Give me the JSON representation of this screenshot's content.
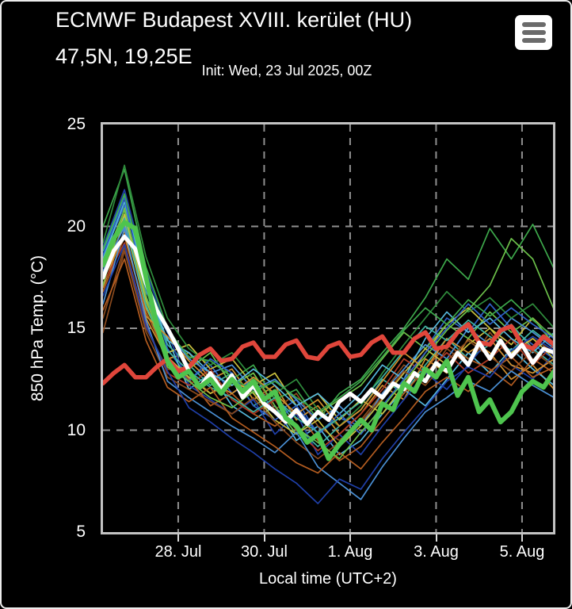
{
  "header": {
    "title_line1": "ECMWF Budapest XVIII. kerület (HU)",
    "title_line2": "47,5N, 19,25E",
    "subtitle": "Init: Wed, 23 Jul 2025, 00Z"
  },
  "menu": {
    "icon": "hamburger-icon"
  },
  "colors": {
    "background": "#000000",
    "card_border": "#ececec",
    "plot_border": "#c3c3c3",
    "grid": "#8f8f8f",
    "text": "#ffffff",
    "ensemble_mean": "#ffffff",
    "control_run": "#4ec44e",
    "climate_mean": "#e0463b"
  },
  "chart_data": {
    "type": "line",
    "title": "ECMWF Budapest XVIII. kerület (HU) 47,5N, 19,25E",
    "subtitle": "Init: Wed, 23 Jul 2025, 00Z",
    "xlabel": "Local time (UTC+2)",
    "ylabel": "850 hPa Temp. (°C)",
    "ylim": [
      5,
      25
    ],
    "x_range": [
      0,
      10.47
    ],
    "x_unit_days_from": "26 Jul 06:00 local",
    "grid": "dashed",
    "legend": "none",
    "y_ticks": [
      {
        "label": "25",
        "value": 25
      },
      {
        "label": "20",
        "value": 20
      },
      {
        "label": "15",
        "value": 15
      },
      {
        "label": "10",
        "value": 10
      },
      {
        "label": "5",
        "value": 5
      }
    ],
    "y_gridlines": [
      20,
      15,
      10
    ],
    "x_ticks": [
      {
        "label": "28. Jul",
        "t": 1.75
      },
      {
        "label": "30. Jul",
        "t": 3.75
      },
      {
        "label": "1. Aug",
        "t": 5.75
      },
      {
        "label": "3. Aug",
        "t": 7.75
      },
      {
        "label": "5. Aug",
        "t": 9.75
      }
    ],
    "main_series": [
      {
        "name": "climate-mean",
        "color": "#e0463b",
        "width": 5.5,
        "step_days": 0.25,
        "values": [
          12.3,
          12.8,
          13.2,
          12.6,
          12.6,
          13.1,
          13.5,
          12.9,
          13.1,
          13.7,
          14.0,
          13.4,
          13.5,
          14.1,
          14.3,
          13.6,
          13.6,
          14.2,
          14.4,
          13.6,
          13.5,
          14.1,
          14.3,
          13.6,
          13.7,
          14.3,
          14.6,
          13.8,
          13.8,
          14.5,
          14.8,
          14.0,
          14.1,
          14.8,
          15.2,
          14.3,
          14.2,
          14.9,
          15.1,
          14.2,
          14.0,
          14.6,
          14.2
        ]
      },
      {
        "name": "ensemble-mean",
        "color": "#ffffff",
        "width": 5,
        "step_days": 0.25,
        "values": [
          17.5,
          18.8,
          19.5,
          18.9,
          17.2,
          15.9,
          15.0,
          14.0,
          12.9,
          12.1,
          12.8,
          12.0,
          12.7,
          11.6,
          12.2,
          11.3,
          10.9,
          10.4,
          11.0,
          10.3,
          10.9,
          10.5,
          11.4,
          11.8,
          11.4,
          12.0,
          11.6,
          12.3,
          12.0,
          12.8,
          12.4,
          13.3,
          12.9,
          13.8,
          13.2,
          14.3,
          13.5,
          14.4,
          13.6,
          14.2,
          13.3,
          14.0,
          13.8
        ]
      },
      {
        "name": "control-run",
        "color": "#4ec44e",
        "width": 6,
        "step_days": 0.25,
        "values": [
          18.1,
          19.4,
          20.2,
          19.9,
          17.5,
          15.2,
          13.4,
          12.6,
          12.9,
          12.1,
          12.5,
          11.8,
          12.5,
          11.9,
          12.4,
          11.5,
          11.9,
          10.6,
          10.2,
          9.4,
          9.8,
          8.6,
          9.3,
          9.9,
          10.5,
          10.0,
          11.3,
          11.0,
          12.3,
          11.9,
          13.0,
          12.6,
          13.4,
          11.7,
          12.6,
          10.9,
          11.5,
          10.4,
          10.9,
          11.9,
          12.4,
          12.1,
          12.9
        ]
      }
    ],
    "ensemble_members": {
      "step_days": 0.5,
      "series": [
        {
          "color": "#2f62c8",
          "values": [
            18.5,
            21.0,
            17.5,
            14.0,
            12.5,
            13.2,
            11.8,
            12.5,
            10.8,
            11.5,
            9.8,
            10.6,
            10.2,
            11.5,
            12.8,
            14.0,
            15.5,
            14.8,
            16.2,
            15.0,
            14.2,
            13.5
          ]
        },
        {
          "color": "#d2912e",
          "values": [
            17.0,
            19.8,
            15.5,
            13.5,
            13.8,
            12.5,
            13.0,
            11.5,
            12.2,
            10.5,
            11.2,
            9.8,
            10.8,
            12.2,
            11.5,
            13.5,
            12.8,
            14.5,
            13.8,
            12.5,
            13.2,
            12.0
          ]
        },
        {
          "color": "#3da84b",
          "values": [
            20.0,
            22.8,
            18.0,
            15.0,
            13.5,
            14.0,
            12.5,
            13.2,
            11.5,
            12.0,
            10.5,
            11.8,
            12.5,
            13.8,
            15.0,
            16.5,
            18.4,
            17.4,
            19.9,
            18.4,
            20.1,
            17.9
          ]
        },
        {
          "color": "#56b8dc",
          "values": [
            18.0,
            20.5,
            16.5,
            14.5,
            12.0,
            12.8,
            11.2,
            10.5,
            11.2,
            9.5,
            10.2,
            8.8,
            9.5,
            10.8,
            12.0,
            11.2,
            12.5,
            13.8,
            12.8,
            14.0,
            13.0,
            12.2
          ]
        },
        {
          "color": "#8a4a1e",
          "values": [
            15.5,
            19.0,
            15.0,
            13.0,
            12.8,
            11.8,
            12.2,
            12.8,
            11.0,
            11.8,
            10.2,
            9.5,
            10.5,
            11.8,
            13.2,
            12.5,
            14.0,
            13.2,
            14.8,
            13.5,
            14.5,
            13.8
          ]
        },
        {
          "color": "#3fb3a0",
          "values": [
            18.8,
            21.5,
            17.0,
            14.2,
            13.2,
            12.2,
            12.8,
            11.2,
            11.8,
            10.2,
            9.2,
            10.2,
            11.0,
            12.5,
            11.8,
            13.2,
            14.5,
            13.5,
            14.2,
            15.2,
            14.0,
            13.2
          ]
        },
        {
          "color": "#c9bf3e",
          "values": [
            17.5,
            20.2,
            16.0,
            13.8,
            14.2,
            13.0,
            13.5,
            12.2,
            12.8,
            11.2,
            11.8,
            10.5,
            11.5,
            10.8,
            12.2,
            13.8,
            15.2,
            16.0,
            15.0,
            14.2,
            15.5,
            14.5
          ]
        },
        {
          "color": "#1f3fa8",
          "values": [
            19.0,
            21.8,
            17.8,
            14.8,
            12.2,
            11.5,
            10.8,
            11.5,
            9.8,
            10.8,
            8.8,
            9.8,
            8.8,
            10.2,
            11.5,
            12.8,
            12.0,
            13.2,
            14.5,
            13.2,
            12.5,
            13.8
          ]
        },
        {
          "color": "#6cc04a",
          "values": [
            18.2,
            20.8,
            16.2,
            13.2,
            13.0,
            13.8,
            12.2,
            12.8,
            11.2,
            9.8,
            10.8,
            11.5,
            12.2,
            13.5,
            14.8,
            14.0,
            15.2,
            14.5,
            15.8,
            14.8,
            15.5,
            14.2
          ]
        },
        {
          "color": "#b35c20",
          "values": [
            16.8,
            19.5,
            15.8,
            13.5,
            12.5,
            11.2,
            11.8,
            10.8,
            10.2,
            11.0,
            9.5,
            8.5,
            9.2,
            10.5,
            11.8,
            13.0,
            14.2,
            13.5,
            13.0,
            12.2,
            13.5,
            12.8
          ]
        },
        {
          "color": "#4a8fd4",
          "values": [
            17.8,
            20.0,
            16.8,
            14.8,
            13.5,
            12.8,
            13.2,
            12.0,
            12.5,
            11.5,
            10.5,
            11.2,
            10.2,
            11.8,
            13.0,
            14.2,
            13.5,
            15.0,
            14.2,
            15.5,
            14.8,
            14.0
          ]
        },
        {
          "color": "#2f8c3c",
          "values": [
            19.2,
            23.0,
            18.5,
            15.5,
            14.0,
            13.2,
            13.8,
            12.5,
            11.8,
            12.5,
            11.0,
            10.2,
            11.2,
            12.8,
            14.2,
            15.5,
            16.8,
            15.8,
            16.5,
            15.5,
            16.2,
            15.0
          ]
        },
        {
          "color": "#b03a24",
          "values": [
            17.2,
            19.2,
            15.2,
            12.8,
            12.2,
            13.0,
            11.5,
            10.8,
            11.5,
            10.0,
            9.0,
            9.8,
            10.8,
            12.0,
            13.5,
            12.8,
            13.8,
            12.8,
            13.5,
            14.5,
            13.2,
            14.2
          ]
        },
        {
          "color": "#56b8dc",
          "values": [
            18.4,
            21.2,
            17.2,
            14.4,
            13.8,
            12.8,
            12.2,
            13.0,
            12.2,
            11.2,
            11.8,
            10.8,
            11.8,
            13.2,
            12.5,
            14.5,
            15.8,
            14.8,
            15.5,
            14.5,
            13.8,
            14.8
          ]
        },
        {
          "color": "#c9bf3e",
          "values": [
            17.6,
            20.6,
            16.4,
            13.6,
            12.6,
            11.8,
            12.5,
            11.8,
            10.5,
            9.8,
            10.5,
            9.2,
            10.2,
            11.5,
            12.8,
            14.0,
            13.2,
            14.2,
            15.0,
            13.8,
            14.5,
            13.5
          ]
        },
        {
          "color": "#2f62c8",
          "values": [
            18.6,
            21.4,
            16.6,
            13.4,
            12.4,
            13.5,
            12.8,
            11.2,
            10.5,
            11.2,
            9.8,
            10.8,
            9.8,
            11.2,
            12.5,
            13.8,
            15.0,
            16.2,
            15.2,
            16.0,
            15.2,
            14.5
          ]
        },
        {
          "color": "#d2912e",
          "values": [
            17.4,
            19.6,
            15.6,
            14.6,
            13.4,
            12.4,
            11.8,
            12.6,
            11.8,
            10.8,
            11.5,
            10.2,
            11.0,
            12.4,
            13.8,
            13.0,
            14.5,
            13.8,
            14.5,
            13.2,
            12.8,
            13.5
          ]
        },
        {
          "color": "#3da84b",
          "values": [
            18.9,
            21.6,
            17.4,
            14.9,
            13.6,
            13.4,
            12.6,
            11.9,
            12.4,
            11.6,
            10.9,
            11.6,
            12.4,
            13.6,
            14.9,
            16.0,
            15.2,
            16.4,
            15.6,
            16.4,
            15.4,
            14.6
          ]
        },
        {
          "color": "#8a4a1e",
          "values": [
            14.8,
            18.8,
            14.8,
            12.6,
            12.0,
            11.4,
            10.8,
            11.6,
            10.4,
            9.4,
            8.6,
            9.4,
            10.4,
            11.6,
            12.9,
            12.2,
            13.4,
            14.4,
            13.6,
            12.9,
            13.9,
            13.1
          ]
        },
        {
          "color": "#3fb3a0",
          "values": [
            18.1,
            20.4,
            16.1,
            13.9,
            12.9,
            12.1,
            11.6,
            10.9,
            11.6,
            10.6,
            9.9,
            10.6,
            11.4,
            12.6,
            13.9,
            15.1,
            14.4,
            15.4,
            14.6,
            13.9,
            14.9,
            14.1
          ]
        },
        {
          "color": "#4a8fd4",
          "values": [
            16.2,
            19.9,
            15.4,
            12.4,
            11.6,
            10.9,
            10.2,
            9.6,
            8.9,
            9.9,
            8.2,
            7.4,
            6.6,
            8.2,
            9.6,
            10.9,
            11.6,
            12.4,
            11.9,
            12.9,
            12.2,
            11.6
          ]
        },
        {
          "color": "#b35c20",
          "values": [
            15.9,
            18.4,
            14.4,
            12.1,
            11.4,
            12.1,
            10.6,
            9.9,
            9.2,
            8.4,
            7.9,
            8.9,
            8.1,
            9.4,
            10.6,
            11.9,
            12.6,
            11.9,
            12.9,
            13.6,
            12.6,
            13.1
          ]
        },
        {
          "color": "#6cc04a",
          "values": [
            17.1,
            20.9,
            16.6,
            13.1,
            12.4,
            11.6,
            11.1,
            11.9,
            10.9,
            10.1,
            9.4,
            8.6,
            9.9,
            11.1,
            12.4,
            13.6,
            14.9,
            15.9,
            17.1,
            19.4,
            18.4,
            15.9
          ]
        },
        {
          "color": "#1f3fa8",
          "values": [
            16.6,
            19.1,
            15.1,
            12.9,
            11.1,
            10.4,
            9.6,
            8.9,
            8.1,
            7.4,
            6.4,
            7.6,
            7.1,
            8.6,
            9.9,
            11.1,
            12.4,
            13.1,
            12.6,
            13.9,
            14.6,
            13.9
          ]
        }
      ]
    }
  }
}
